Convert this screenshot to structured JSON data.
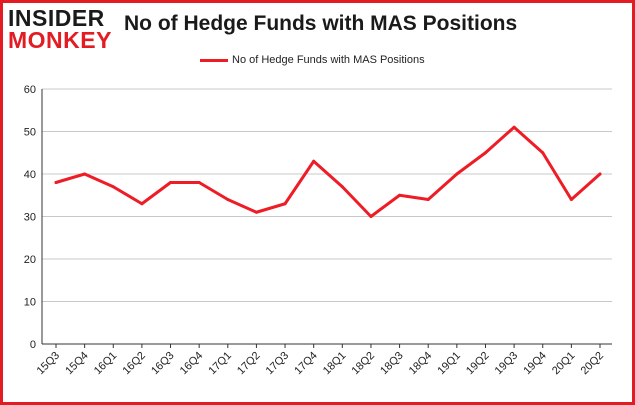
{
  "logo": {
    "line1": "INSIDER",
    "line2": "MONKEY"
  },
  "colors": {
    "series": "#ee1c25",
    "border": "#e31b23",
    "logo_red": "#e31b23",
    "grid": "#c8c8c8"
  },
  "chart_data": {
    "type": "line",
    "title": "No of Hedge Funds with MAS Positions",
    "xlabel": "",
    "ylabel": "",
    "ylim": [
      0,
      60
    ],
    "yticks": [
      0,
      10,
      20,
      30,
      40,
      50,
      60
    ],
    "grid": "horizontal",
    "legend_position": "top-center",
    "categories": [
      "15Q3",
      "15Q4",
      "16Q1",
      "16Q2",
      "16Q3",
      "16Q4",
      "17Q1",
      "17Q2",
      "17Q3",
      "17Q4",
      "18Q1",
      "18Q2",
      "18Q3",
      "18Q4",
      "19Q1",
      "19Q2",
      "19Q3",
      "19Q4",
      "20Q1",
      "20Q2"
    ],
    "series": [
      {
        "name": "No of Hedge Funds with MAS Positions",
        "values": [
          38,
          40,
          37,
          33,
          38,
          38,
          34,
          31,
          33,
          43,
          37,
          30,
          35,
          34,
          40,
          45,
          51,
          45,
          34,
          40
        ]
      }
    ]
  }
}
